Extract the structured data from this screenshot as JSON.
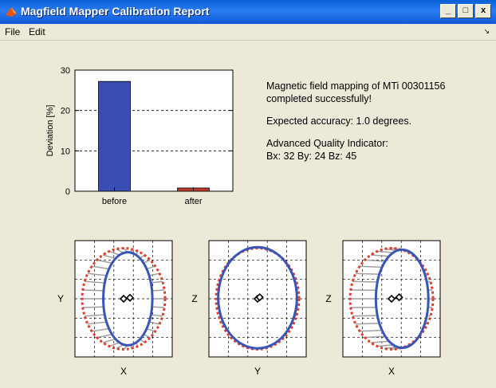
{
  "window": {
    "title": "Magfield Mapper Calibration Report",
    "buttons": [
      "_",
      "□",
      "x"
    ]
  },
  "menu": {
    "items": [
      "File",
      "Edit"
    ],
    "dock_arrow": "↘"
  },
  "info": {
    "line1": "Magnetic field mapping of MTi 00301156",
    "line2": "completed successfully!",
    "accuracy": "Expected accuracy: 1.0 degrees.",
    "aqi_label": "Advanced Quality Indicator:",
    "aqi_values": "Bx: 32 By: 24 Bz: 45"
  },
  "chart_data": [
    {
      "type": "bar",
      "categories": [
        "before",
        "after"
      ],
      "values": [
        27.2,
        0.8
      ],
      "colors": [
        "#3a4fb4",
        "#c0392b"
      ],
      "ylabel": "Deviation [%]",
      "ylim": [
        0,
        30
      ],
      "yticks": [
        0,
        10,
        20,
        30
      ],
      "grid": true
    },
    {
      "type": "scatter",
      "xlabel": "X",
      "ylabel": "Y",
      "ellipse_before": {
        "cx": 0.1,
        "cy": 0.0,
        "rx": 0.58,
        "ry": 0.92
      },
      "ellipse_after": {
        "cx": 0.0,
        "cy": 0.0,
        "rx": 0.98,
        "ry": 1.0
      },
      "center_before": [
        0.0,
        0.0
      ],
      "center_after": [
        0.15,
        0.02
      ]
    },
    {
      "type": "scatter",
      "xlabel": "Y",
      "ylabel": "Z",
      "ellipse_before": {
        "cx": 0.0,
        "cy": 0.02,
        "rx": 0.93,
        "ry": 1.0
      },
      "ellipse_after": {
        "cx": 0.0,
        "cy": 0.0,
        "rx": 0.98,
        "ry": 1.0
      },
      "center_before": [
        0.0,
        0.0
      ],
      "center_after": [
        0.05,
        0.03
      ]
    },
    {
      "type": "scatter",
      "xlabel": "X",
      "ylabel": "Z",
      "ellipse_before": {
        "cx": 0.25,
        "cy": 0.0,
        "rx": 0.62,
        "ry": 0.97
      },
      "ellipse_after": {
        "cx": 0.0,
        "cy": 0.0,
        "rx": 0.98,
        "ry": 1.0
      },
      "center_before": [
        0.0,
        0.0
      ],
      "center_after": [
        0.18,
        0.03
      ]
    }
  ],
  "colors": {
    "bar_before": "#3a4fb4",
    "bar_after": "#c0392b",
    "ellipse_measured": "#3a55b8",
    "ellipse_reference": "#e23b2a",
    "correction_lines": "#a0a0a0"
  }
}
